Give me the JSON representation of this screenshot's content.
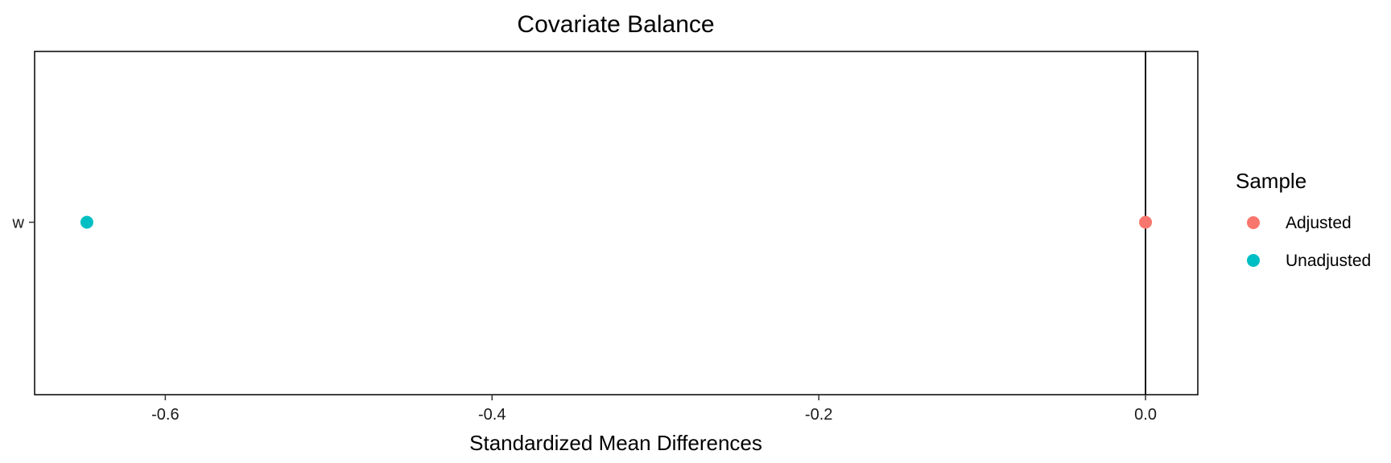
{
  "chart_data": {
    "type": "scatter",
    "title": "Covariate Balance",
    "xlabel": "Standardized Mean Differences",
    "ylabel": "",
    "xlim": [
      -0.68,
      0.032
    ],
    "xticks": [
      -0.6,
      -0.4,
      -0.2,
      0.0
    ],
    "xtick_labels": [
      "-0.6",
      "-0.4",
      "-0.2",
      "0.0"
    ],
    "categories": [
      "w"
    ],
    "reference_line_x": 0,
    "grid": false,
    "legend": {
      "title": "Sample",
      "position": "right"
    },
    "series": [
      {
        "name": "Adjusted",
        "color": "#F8766D",
        "points": [
          {
            "y": "w",
            "x": 0.0
          }
        ]
      },
      {
        "name": "Unadjusted",
        "color": "#00BFC4",
        "points": [
          {
            "y": "w",
            "x": -0.648
          }
        ]
      }
    ]
  }
}
